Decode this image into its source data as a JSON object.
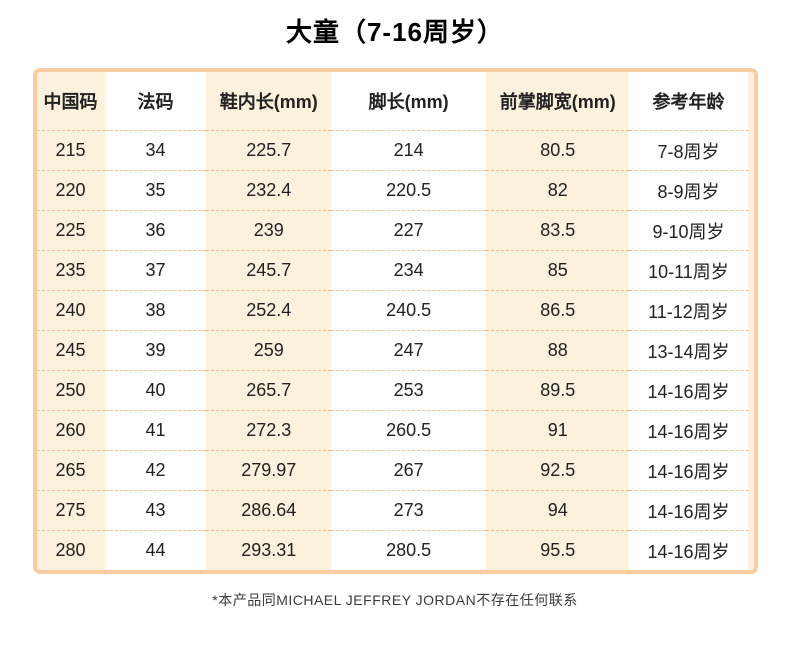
{
  "page": {
    "title": "大童（7-16周岁）",
    "footnote": "*本产品同MICHAEL JEFFREY JORDAN不存在任何联系"
  },
  "table": {
    "columns": [
      "中国码",
      "法码",
      "鞋内长(mm)",
      "脚长(mm)",
      "前掌脚宽(mm)",
      "参考年龄"
    ],
    "column_widths_pct": [
      9.5,
      14.2,
      17.4,
      21.6,
      20.0,
      17.3
    ],
    "rows": [
      [
        "215",
        "34",
        "225.7",
        "214",
        "80.5",
        "7-8周岁"
      ],
      [
        "220",
        "35",
        "232.4",
        "220.5",
        "82",
        "8-9周岁"
      ],
      [
        "225",
        "36",
        "239",
        "227",
        "83.5",
        "9-10周岁"
      ],
      [
        "235",
        "37",
        "245.7",
        "234",
        "85",
        "10-11周岁"
      ],
      [
        "240",
        "38",
        "252.4",
        "240.5",
        "86.5",
        "11-12周岁"
      ],
      [
        "245",
        "39",
        "259",
        "247",
        "88",
        "13-14周岁"
      ],
      [
        "250",
        "40",
        "265.7",
        "253",
        "89.5",
        "14-16周岁"
      ],
      [
        "260",
        "41",
        "272.3",
        "260.5",
        "91",
        "14-16周岁"
      ],
      [
        "265",
        "42",
        "279.97",
        "267",
        "92.5",
        "14-16周岁"
      ],
      [
        "275",
        "43",
        "286.64",
        "273",
        "94",
        "14-16周岁"
      ],
      [
        "280",
        "44",
        "293.31",
        "280.5",
        "95.5",
        "14-16周岁"
      ]
    ]
  },
  "colors": {
    "table_border": "#f9cda1",
    "stripe_cream": "#fbf1dd",
    "row_separator": "#f2bd91",
    "cell_text": "#222222",
    "title_text": "#000000",
    "footnote_text": "#3b3b3b",
    "background": "#ffffff"
  }
}
